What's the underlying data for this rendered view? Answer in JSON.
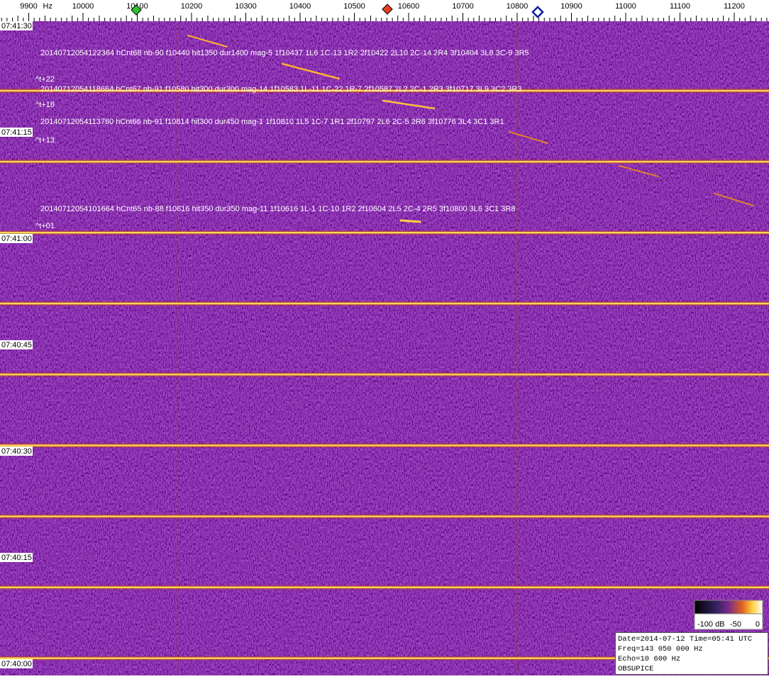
{
  "freq_axis": {
    "unit": "Hz",
    "ticks": [
      9900,
      10000,
      10100,
      10200,
      10300,
      10400,
      10500,
      10600,
      10700,
      10800,
      10900,
      11000,
      11100,
      11200
    ]
  },
  "time_axis": {
    "labels": [
      "07:41:30",
      "07:41:15",
      "07:41:00",
      "07:40:45",
      "07:40:30",
      "07:40:15",
      "07:40:00"
    ]
  },
  "detections": [
    {
      "text": "20140712054122364 hCnt68 nb-90 f10440 hit1350 dur1400 mag-5 1f10437 1L6 1C-13 1R2 2f10422 2L10 2C-14 2R4 3f10404 3L8 3C-9 3R5",
      "offset": "^t+22"
    },
    {
      "text": "20140712054118664 hCnt67 nb-91 f10580 hit300 dur300 mag-14 1f10583 1L-11 1C-22 1R-7 2f10587 2L2 2C-1 2R3 3f10717 3L9 3C2 3R3",
      "offset": "^t+18"
    },
    {
      "text": "20140712054113760 hCnt66 nb-91 f10814 hit300 dur450 mag-1 1f10810 1L5 1C-7 1R1 2f10797 2L6 2C-5 2R6 3f10776 3L4 3C1 3R1",
      "offset": "^t+13"
    },
    {
      "text": "20140712054101664 hCnt65 nb-88 f10616 hit350 dur350 mag-11 1f10616 1L-1 1C-10 1R2 2f10604 2L5 2C-4 2R5 3f10800 3L6 3C1 3R8",
      "offset": "^t+01"
    }
  ],
  "colorbar": {
    "labels": [
      "-100 dB",
      "-50",
      "0"
    ]
  },
  "info": {
    "lines": [
      "Date=2014-07-12 Time=05:41 UTC",
      "Freq=143 050 000 Hz",
      "Echo=10 600 Hz",
      "OBSUPICE"
    ]
  }
}
